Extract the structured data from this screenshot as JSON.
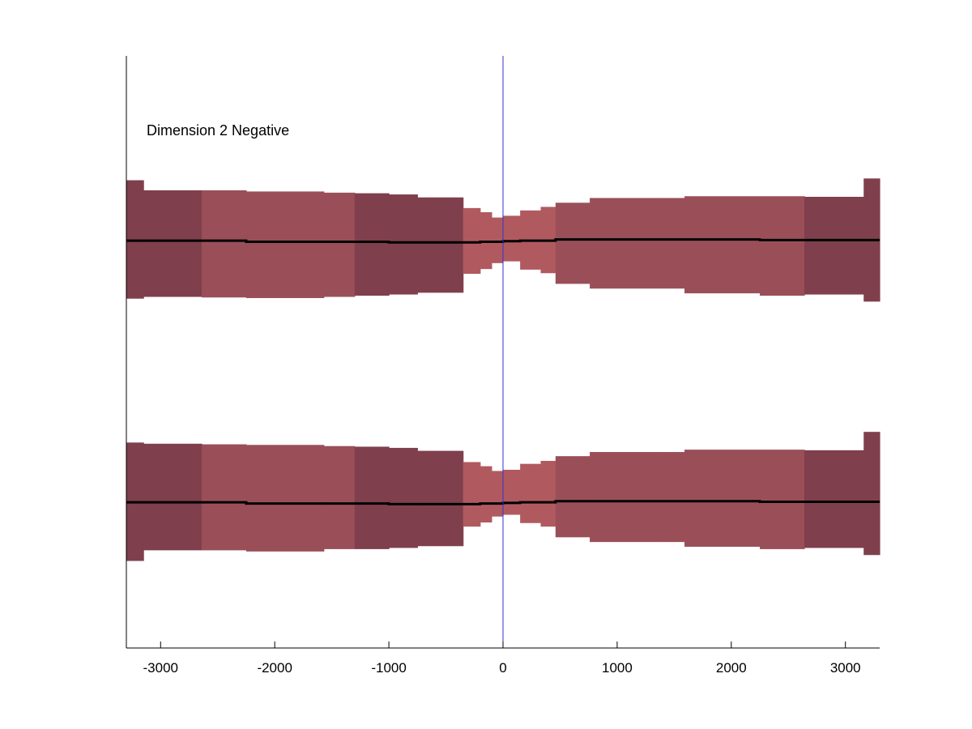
{
  "chart_data": {
    "type": "area",
    "title": "",
    "xlabel": "",
    "ylabel": "",
    "annotation": "Dimension 2 Negative",
    "xlim": [
      -3300,
      3300
    ],
    "xticks": [
      -3000,
      -2000,
      -1000,
      0,
      1000,
      2000,
      3000
    ],
    "tick_labels": [
      "-3000",
      "-2000",
      "-1000",
      "0",
      "1000",
      "2000",
      "3000"
    ],
    "ylim": [
      0,
      10
    ],
    "y_axis_ticks": "none",
    "grid": false,
    "vertical_reference_line": {
      "x": 0,
      "color": "#3333cc"
    },
    "colors": {
      "dark_band": "#7f3f4c",
      "mid_band": "#9a4f58",
      "light_band": "#b05a60",
      "mean_line": "#000000",
      "axes": "#000000"
    },
    "series": [
      {
        "bins": [
          {
            "x0": -3300,
            "x1": -3150,
            "lo": 5.9,
            "hi": 7.9,
            "mean": 6.88,
            "shade": "dark"
          },
          {
            "x0": -3150,
            "x1": -2640,
            "lo": 5.93,
            "hi": 7.73,
            "mean": 6.88,
            "shade": "dark"
          },
          {
            "x0": -2640,
            "x1": -2250,
            "lo": 5.92,
            "hi": 7.73,
            "mean": 6.88,
            "shade": "mid"
          },
          {
            "x0": -2250,
            "x1": -1570,
            "lo": 5.91,
            "hi": 7.71,
            "mean": 6.86,
            "shade": "mid"
          },
          {
            "x0": -1570,
            "x1": -1300,
            "lo": 5.93,
            "hi": 7.69,
            "mean": 6.86,
            "shade": "mid"
          },
          {
            "x0": -1300,
            "x1": -1000,
            "lo": 5.95,
            "hi": 7.68,
            "mean": 6.86,
            "shade": "dark"
          },
          {
            "x0": -1000,
            "x1": -750,
            "lo": 5.97,
            "hi": 7.66,
            "mean": 6.85,
            "shade": "dark"
          },
          {
            "x0": -750,
            "x1": -350,
            "lo": 6.0,
            "hi": 7.61,
            "mean": 6.85,
            "shade": "dark"
          },
          {
            "x0": -350,
            "x1": -200,
            "lo": 6.32,
            "hi": 7.43,
            "mean": 6.85,
            "shade": "light"
          },
          {
            "x0": -200,
            "x1": -100,
            "lo": 6.4,
            "hi": 7.36,
            "mean": 6.86,
            "shade": "light"
          },
          {
            "x0": -100,
            "x1": 0,
            "lo": 6.5,
            "hi": 7.27,
            "mean": 6.86,
            "shade": "light"
          },
          {
            "x0": 0,
            "x1": 150,
            "lo": 6.53,
            "hi": 7.3,
            "mean": 6.87,
            "shade": "light"
          },
          {
            "x0": 150,
            "x1": 330,
            "lo": 6.39,
            "hi": 7.39,
            "mean": 6.88,
            "shade": "light"
          },
          {
            "x0": 330,
            "x1": 460,
            "lo": 6.33,
            "hi": 7.45,
            "mean": 6.88,
            "shade": "light"
          },
          {
            "x0": 460,
            "x1": 670,
            "lo": 6.15,
            "hi": 7.52,
            "mean": 6.9,
            "shade": "mid"
          },
          {
            "x0": 670,
            "x1": 760,
            "lo": 6.15,
            "hi": 7.52,
            "mean": 6.9,
            "shade": "mid"
          },
          {
            "x0": 760,
            "x1": 1350,
            "lo": 6.07,
            "hi": 7.6,
            "mean": 6.9,
            "shade": "mid"
          },
          {
            "x0": 1350,
            "x1": 1590,
            "lo": 6.07,
            "hi": 7.6,
            "mean": 6.9,
            "shade": "mid"
          },
          {
            "x0": 1590,
            "x1": 2250,
            "lo": 5.99,
            "hi": 7.63,
            "mean": 6.9,
            "shade": "mid"
          },
          {
            "x0": 2250,
            "x1": 2640,
            "lo": 5.95,
            "hi": 7.63,
            "mean": 6.89,
            "shade": "mid"
          },
          {
            "x0": 2640,
            "x1": 3160,
            "lo": 5.97,
            "hi": 7.62,
            "mean": 6.89,
            "shade": "dark"
          },
          {
            "x0": 3160,
            "x1": 3300,
            "lo": 5.85,
            "hi": 7.93,
            "mean": 6.89,
            "shade": "dark"
          }
        ]
      },
      {
        "bins": [
          {
            "x0": -3300,
            "x1": -3150,
            "lo": 1.47,
            "hi": 3.47,
            "mean": 2.46,
            "shade": "dark"
          },
          {
            "x0": -3150,
            "x1": -2640,
            "lo": 1.65,
            "hi": 3.45,
            "mean": 2.46,
            "shade": "dark"
          },
          {
            "x0": -2640,
            "x1": -2250,
            "lo": 1.65,
            "hi": 3.44,
            "mean": 2.46,
            "shade": "mid"
          },
          {
            "x0": -2250,
            "x1": -1570,
            "lo": 1.63,
            "hi": 3.43,
            "mean": 2.44,
            "shade": "mid"
          },
          {
            "x0": -1570,
            "x1": -1300,
            "lo": 1.67,
            "hi": 3.41,
            "mean": 2.44,
            "shade": "mid"
          },
          {
            "x0": -1300,
            "x1": -1000,
            "lo": 1.67,
            "hi": 3.4,
            "mean": 2.44,
            "shade": "dark"
          },
          {
            "x0": -1000,
            "x1": -750,
            "lo": 1.69,
            "hi": 3.38,
            "mean": 2.43,
            "shade": "dark"
          },
          {
            "x0": -750,
            "x1": -350,
            "lo": 1.72,
            "hi": 3.33,
            "mean": 2.43,
            "shade": "dark"
          },
          {
            "x0": -350,
            "x1": -200,
            "lo": 2.05,
            "hi": 3.14,
            "mean": 2.43,
            "shade": "light"
          },
          {
            "x0": -200,
            "x1": -100,
            "lo": 2.12,
            "hi": 3.07,
            "mean": 2.44,
            "shade": "light"
          },
          {
            "x0": -100,
            "x1": 0,
            "lo": 2.22,
            "hi": 2.99,
            "mean": 2.44,
            "shade": "light"
          },
          {
            "x0": 0,
            "x1": 150,
            "lo": 2.25,
            "hi": 3.01,
            "mean": 2.45,
            "shade": "light"
          },
          {
            "x0": 150,
            "x1": 330,
            "lo": 2.11,
            "hi": 3.11,
            "mean": 2.46,
            "shade": "light"
          },
          {
            "x0": 330,
            "x1": 460,
            "lo": 2.05,
            "hi": 3.16,
            "mean": 2.46,
            "shade": "light"
          },
          {
            "x0": 460,
            "x1": 670,
            "lo": 1.87,
            "hi": 3.24,
            "mean": 2.48,
            "shade": "mid"
          },
          {
            "x0": 670,
            "x1": 760,
            "lo": 1.87,
            "hi": 3.24,
            "mean": 2.48,
            "shade": "mid"
          },
          {
            "x0": 760,
            "x1": 1350,
            "lo": 1.79,
            "hi": 3.31,
            "mean": 2.48,
            "shade": "mid"
          },
          {
            "x0": 1350,
            "x1": 1590,
            "lo": 1.79,
            "hi": 3.31,
            "mean": 2.48,
            "shade": "mid"
          },
          {
            "x0": 1590,
            "x1": 2250,
            "lo": 1.71,
            "hi": 3.35,
            "mean": 2.48,
            "shade": "mid"
          },
          {
            "x0": 2250,
            "x1": 2640,
            "lo": 1.67,
            "hi": 3.35,
            "mean": 2.47,
            "shade": "mid"
          },
          {
            "x0": 2640,
            "x1": 3160,
            "lo": 1.69,
            "hi": 3.34,
            "mean": 2.47,
            "shade": "dark"
          },
          {
            "x0": 3160,
            "x1": 3300,
            "lo": 1.57,
            "hi": 3.65,
            "mean": 2.47,
            "shade": "dark"
          }
        ]
      }
    ]
  }
}
